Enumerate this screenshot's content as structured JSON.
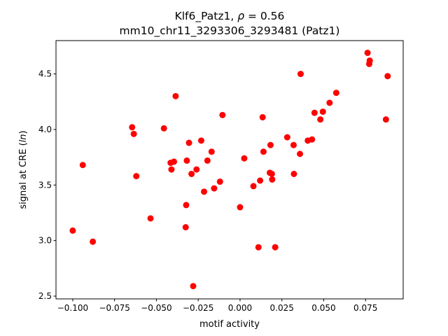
{
  "chart_data": {
    "type": "scatter",
    "title_line1_pre": "Klf6_Patz1, ",
    "title_line1_rho": "ρ",
    "title_line1_post": " = 0.56",
    "title_line2": "mm10_chr11_3293306_3293481 (Patz1)",
    "xlabel": "motif activity",
    "ylabel_pre": "signal at CRE (",
    "ylabel_italic": "ln",
    "ylabel_post": ")",
    "xlim": [
      -0.11,
      0.0975
    ],
    "ylim": [
      2.475,
      4.8
    ],
    "xticks": [
      {
        "value": -0.1,
        "label": "−0.100"
      },
      {
        "value": -0.075,
        "label": "−0.075"
      },
      {
        "value": -0.05,
        "label": "−0.050"
      },
      {
        "value": -0.025,
        "label": "−0.025"
      },
      {
        "value": 0.0,
        "label": "0.000"
      },
      {
        "value": 0.025,
        "label": "0.025"
      },
      {
        "value": 0.05,
        "label": "0.050"
      },
      {
        "value": 0.075,
        "label": "0.075"
      }
    ],
    "yticks": [
      {
        "value": 2.5,
        "label": "2.5"
      },
      {
        "value": 3.0,
        "label": "3.0"
      },
      {
        "value": 3.5,
        "label": "3.5"
      },
      {
        "value": 4.0,
        "label": "4.0"
      },
      {
        "value": 4.5,
        "label": "4.5"
      }
    ],
    "grid": false,
    "point_color": "#ff0000",
    "points": [
      {
        "x": -0.1,
        "y": 3.09
      },
      {
        "x": -0.094,
        "y": 3.68
      },
      {
        "x": -0.088,
        "y": 2.99
      },
      {
        "x": -0.0645,
        "y": 4.02
      },
      {
        "x": -0.0635,
        "y": 3.96
      },
      {
        "x": -0.062,
        "y": 3.58
      },
      {
        "x": -0.0535,
        "y": 3.2
      },
      {
        "x": -0.0455,
        "y": 4.01
      },
      {
        "x": -0.0415,
        "y": 3.7
      },
      {
        "x": -0.041,
        "y": 3.64
      },
      {
        "x": -0.0395,
        "y": 3.71
      },
      {
        "x": -0.0385,
        "y": 4.3
      },
      {
        "x": -0.0325,
        "y": 3.12
      },
      {
        "x": -0.0322,
        "y": 3.32
      },
      {
        "x": -0.0318,
        "y": 3.72
      },
      {
        "x": -0.0305,
        "y": 3.88
      },
      {
        "x": -0.029,
        "y": 3.6
      },
      {
        "x": -0.028,
        "y": 2.59
      },
      {
        "x": -0.026,
        "y": 3.64
      },
      {
        "x": -0.0232,
        "y": 3.9
      },
      {
        "x": -0.0215,
        "y": 3.44
      },
      {
        "x": -0.0195,
        "y": 3.72
      },
      {
        "x": -0.017,
        "y": 3.8
      },
      {
        "x": -0.0155,
        "y": 3.47
      },
      {
        "x": -0.012,
        "y": 3.53
      },
      {
        "x": -0.0105,
        "y": 4.13
      },
      {
        "x": 0.0,
        "y": 3.3
      },
      {
        "x": 0.0025,
        "y": 3.74
      },
      {
        "x": 0.008,
        "y": 3.49
      },
      {
        "x": 0.011,
        "y": 2.94
      },
      {
        "x": 0.012,
        "y": 3.54
      },
      {
        "x": 0.0135,
        "y": 4.11
      },
      {
        "x": 0.014,
        "y": 3.8
      },
      {
        "x": 0.0178,
        "y": 3.61
      },
      {
        "x": 0.0182,
        "y": 3.86
      },
      {
        "x": 0.019,
        "y": 3.6
      },
      {
        "x": 0.0192,
        "y": 3.55
      },
      {
        "x": 0.021,
        "y": 2.94
      },
      {
        "x": 0.0282,
        "y": 3.93
      },
      {
        "x": 0.032,
        "y": 3.86
      },
      {
        "x": 0.0322,
        "y": 3.6
      },
      {
        "x": 0.0358,
        "y": 3.78
      },
      {
        "x": 0.0362,
        "y": 4.5
      },
      {
        "x": 0.0405,
        "y": 3.9
      },
      {
        "x": 0.043,
        "y": 3.91
      },
      {
        "x": 0.0445,
        "y": 4.15
      },
      {
        "x": 0.048,
        "y": 4.09
      },
      {
        "x": 0.0495,
        "y": 4.16
      },
      {
        "x": 0.0535,
        "y": 4.24
      },
      {
        "x": 0.0575,
        "y": 4.33
      },
      {
        "x": 0.0762,
        "y": 4.69
      },
      {
        "x": 0.0772,
        "y": 4.59
      },
      {
        "x": 0.0775,
        "y": 4.62
      },
      {
        "x": 0.0872,
        "y": 4.09
      },
      {
        "x": 0.0882,
        "y": 4.48
      }
    ]
  }
}
